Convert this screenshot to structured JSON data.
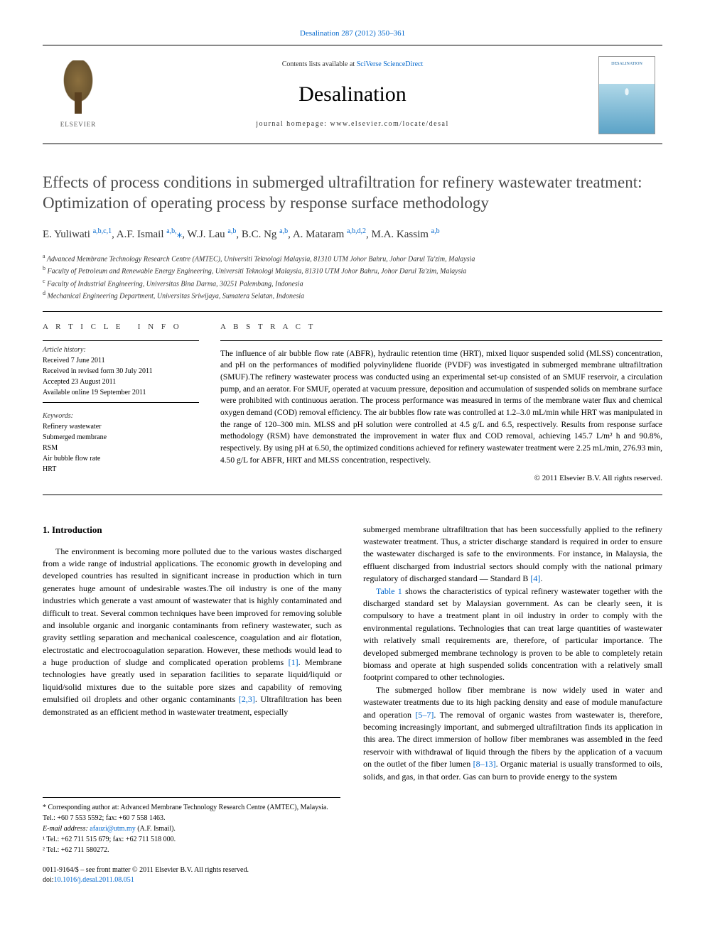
{
  "journal_ref_link": "Desalination 287 (2012) 350–361",
  "header": {
    "contents_prefix": "Contents lists available at ",
    "contents_link": "SciVerse ScienceDirect",
    "journal_name": "Desalination",
    "homepage_prefix": "journal homepage: ",
    "homepage_url": "www.elsevier.com/locate/desal",
    "publisher": "ELSEVIER",
    "cover_text": "DESALINATION"
  },
  "title": "Effects of process conditions in submerged ultrafiltration for refinery wastewater treatment: Optimization of operating process by response surface methodology",
  "authors": [
    {
      "name": "E. Yuliwati",
      "affs": "a,b,c,1"
    },
    {
      "name": "A.F. Ismail",
      "affs": "a,b,*"
    },
    {
      "name": "W.J. Lau",
      "affs": "a,b"
    },
    {
      "name": "B.C. Ng",
      "affs": "a,b"
    },
    {
      "name": "A. Mataram",
      "affs": "a,b,d,2"
    },
    {
      "name": "M.A. Kassim",
      "affs": "a,b"
    }
  ],
  "affiliations": [
    {
      "key": "a",
      "text": "Advanced Membrane Technology Research Centre (AMTEC), Universiti Teknologi Malaysia, 81310 UTM Johor Bahru, Johor Darul Ta'zim, Malaysia"
    },
    {
      "key": "b",
      "text": "Faculty of Petroleum and Renewable Energy Engineering, Universiti Teknologi Malaysia, 81310 UTM Johor Bahru, Johor Darul Ta'zim, Malaysia"
    },
    {
      "key": "c",
      "text": "Faculty of Industrial Engineering, Universitas Bina Darma, 30251 Palembang, Indonesia"
    },
    {
      "key": "d",
      "text": "Mechanical Engineering Department, Universitas Sriwijaya, Sumatera Selatan, Indonesia"
    }
  ],
  "article_info": {
    "heading": "article info",
    "history_label": "Article history:",
    "history": [
      "Received 7 June 2011",
      "Received in revised form 30 July 2011",
      "Accepted 23 August 2011",
      "Available online 19 September 2011"
    ],
    "keywords_label": "Keywords:",
    "keywords": [
      "Refinery wastewater",
      "Submerged membrane",
      "RSM",
      "Air bubble flow rate",
      "HRT"
    ]
  },
  "abstract": {
    "heading": "abstract",
    "text": "The influence of air bubble flow rate (ABFR), hydraulic retention time (HRT), mixed liquor suspended solid (MLSS) concentration, and pH on the performances of modified polyvinylidene fluoride (PVDF) was investigated in submerged membrane ultrafiltration (SMUF).The refinery wastewater process was conducted using an experimental set-up consisted of an SMUF reservoir, a circulation pump, and an aerator. For SMUF, operated at vacuum pressure, deposition and accumulation of suspended solids on membrane surface were prohibited with continuous aeration. The process performance was measured in terms of the membrane water flux and chemical oxygen demand (COD) removal efficiency. The air bubbles flow rate was controlled at 1.2–3.0 mL/min while HRT was manipulated in the range of 120–300 min. MLSS and pH solution were controlled at 4.5 g/L and 6.5, respectively. Results from response surface methodology (RSM) have demonstrated the improvement in water flux and COD removal, achieving 145.7 L/m² h and 90.8%, respectively. By using pH at 6.50, the optimized conditions achieved for refinery wastewater treatment were 2.25 mL/min, 276.93 min, 4.50 g/L for ABFR, HRT and MLSS concentration, respectively.",
    "copyright": "© 2011 Elsevier B.V. All rights reserved."
  },
  "body": {
    "section_heading": "1. Introduction",
    "col1_paras": [
      "The environment is becoming more polluted due to the various wastes discharged from a wide range of industrial applications. The economic growth in developing and developed countries has resulted in significant increase in production which in turn generates huge amount of undesirable wastes.The oil industry is one of the many industries which generate a vast amount of wastewater that is highly contaminated and difficult to treat. Several common techniques have been improved for removing soluble and insoluble organic and inorganic contaminants from refinery wastewater, such as gravity settling separation and mechanical coalescence, coagulation and air flotation, electrostatic and electrocoagulation separation. However, these methods would lead to a huge production of sludge and complicated operation problems [1]. Membrane technologies have greatly used in separation facilities to separate liquid/liquid or liquid/solid mixtures due to the suitable pore sizes and capability of removing emulsified oil droplets and other organic contaminants [2,3]. Ultrafiltration has been demonstrated as an efficient method in wastewater treatment, especially"
    ],
    "col2_paras": [
      "submerged membrane ultrafiltration that has been successfully applied to the refinery wastewater treatment. Thus, a stricter discharge standard is required in order to ensure the wastewater discharged is safe to the environments. For instance, in Malaysia, the effluent discharged from industrial sectors should comply with the national primary regulatory of discharged standard — Standard B [4].",
      "Table 1 shows the characteristics of typical refinery wastewater together with the discharged standard set by Malaysian government. As can be clearly seen, it is compulsory to have a treatment plant in oil industry in order to comply with the environmental regulations. Technologies that can treat large quantities of wastewater with relatively small requirements are, therefore, of particular importance. The developed submerged membrane technology is proven to be able to completely retain biomass and operate at high suspended solids concentration with a relatively small footprint compared to other technologies.",
      "The submerged hollow fiber membrane is now widely used in water and wastewater treatments due to its high packing density and ease of module manufacture and operation [5–7]. The removal of organic wastes from wastewater is, therefore, becoming increasingly important, and submerged ultrafiltration finds its application in this area. The direct immersion of hollow fiber membranes was assembled in the feed reservoir with withdrawal of liquid through the fibers by the application of a vacuum on the outlet of the fiber lumen [8–13]. Organic material is usually transformed to oils, solids, and gas, in that order. Gas can burn to provide energy to the system"
    ],
    "refs": {
      "r1": "[1]",
      "r23": "[2,3]",
      "r4": "[4]",
      "r57": "[5–7]",
      "r813": "[8–13]",
      "table1": "Table 1"
    }
  },
  "footnotes": {
    "corr_label": "* Corresponding author at: Advanced Membrane Technology Research Centre (AMTEC), Malaysia. Tel.: +60 7 553 5592; fax: +60 7 558 1463.",
    "email_label": "E-mail address:",
    "email": "afauzi@utm.my",
    "email_owner": "(A.F. Ismail).",
    "fn1": "¹ Tel.: +62 711 515 679; fax: +62 711 518 000.",
    "fn2": "² Tel.: +62 711 580272."
  },
  "footer": {
    "issn": "0011-9164/$ – see front matter © 2011 Elsevier B.V. All rights reserved.",
    "doi_label": "doi:",
    "doi": "10.1016/j.desal.2011.08.051"
  },
  "colors": {
    "link": "#0066cc",
    "text": "#000000",
    "title_gray": "#4a4a4a"
  }
}
